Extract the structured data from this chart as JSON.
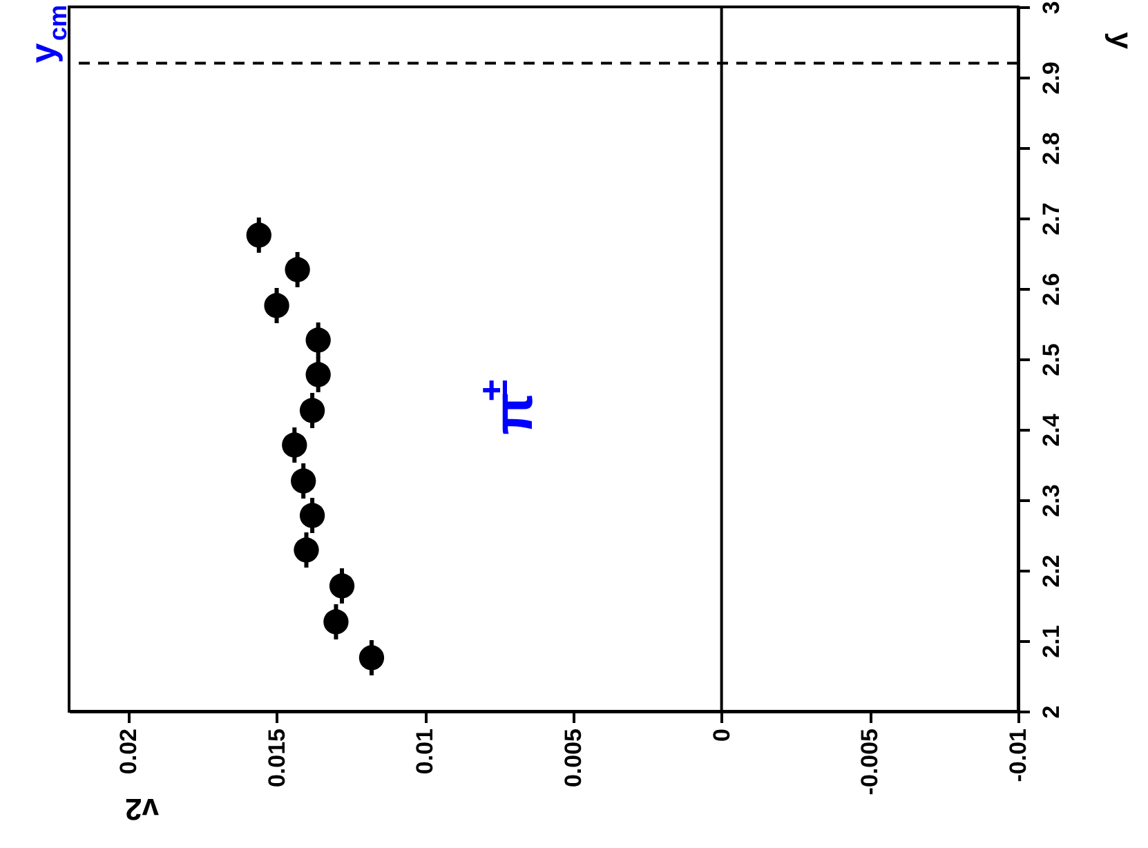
{
  "chart_data": {
    "type": "scatter",
    "xlabel": "v2",
    "ylabel": "y",
    "x": [
      0.0156,
      0.0143,
      0.015,
      0.0136,
      0.0136,
      0.0138,
      0.0144,
      0.0141,
      0.0138,
      0.014,
      0.0128,
      0.013,
      0.0118
    ],
    "series": [
      {
        "color": "#000000",
        "values": [
          2.676,
          2.627,
          2.576,
          2.527,
          2.478,
          2.427,
          2.378,
          2.327,
          2.278,
          2.229,
          2.178,
          2.127,
          2.076
        ],
        "errors": [
          0.025,
          0.025,
          0.025,
          0.025,
          0.025,
          0.025,
          0.025,
          0.025,
          0.025,
          0.025,
          0.025,
          0.025,
          0.025
        ]
      }
    ],
    "xlim": [
      0.022,
      -0.01
    ],
    "xticks": [
      0.02,
      0.015,
      0.01,
      0.005,
      0,
      -0.005,
      -0.01
    ],
    "ylim": [
      2,
      3
    ],
    "yticks": [
      2,
      2.1,
      2.2,
      2.3,
      2.4,
      2.5,
      2.6,
      2.7,
      2.8,
      2.9,
      3
    ],
    "ref_lines": [
      {
        "axis": "y",
        "value": 2.92,
        "label": "y$_{cm}$",
        "line_style": "dashed",
        "color": "#000000"
      },
      {
        "axis": "x",
        "value": 0,
        "line_style": "solid",
        "color": "#000000"
      }
    ],
    "annotations": [
      "π$^{±}$"
    ],
    "marker": "circle",
    "grid": false
  }
}
